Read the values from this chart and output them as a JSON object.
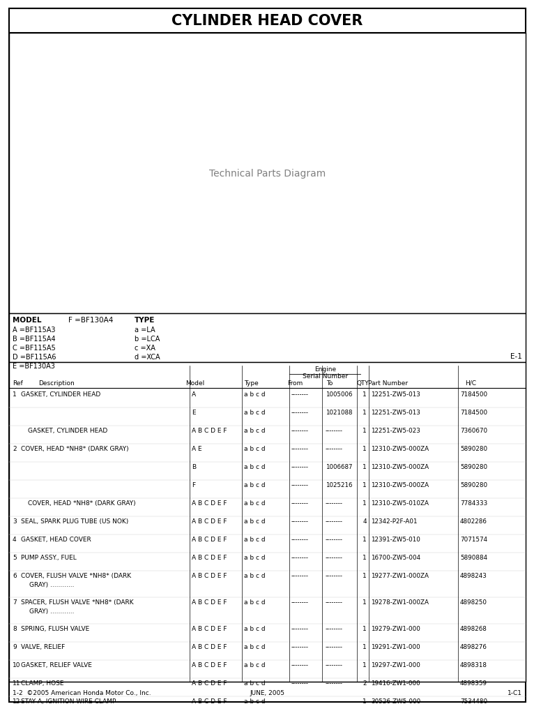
{
  "title": "CYLINDER HEAD COVER",
  "page_bg": "#ffffff",
  "model_info": {
    "model_label": "MODEL",
    "model_value": "F =BF130A4",
    "type_label": "TYPE",
    "entries_left": [
      "A =BF115A3",
      "B =BF115A4",
      "C =BF115A5",
      "D =BF115A6",
      "E =BF130A3"
    ],
    "entries_right": [
      "a =LA",
      "b =LCA",
      "c =XA",
      "d =XCA"
    ],
    "page_code": "E-1"
  },
  "table_rows": [
    {
      "ref": "1",
      "desc": "GASKET, CYLINDER HEAD ",
      "dots1": true,
      "model": "A",
      "type": "a b c d",
      "from": "--------",
      "to": "1005006",
      "qty": "1",
      "part": "12251-ZW5-013",
      "hc": "7184500"
    },
    {
      "ref": "",
      "desc": "",
      "dots1": false,
      "model": "E",
      "type": "a b c d",
      "from": "--------",
      "to": "1021088",
      "qty": "1",
      "part": "12251-ZW5-013",
      "hc": "7184500"
    },
    {
      "ref": "",
      "desc": "GASKET, CYLINDER HEAD ",
      "dots1": true,
      "model": "A B C D E F",
      "type": "a b c d",
      "from": "--------",
      "to": "--------",
      "qty": "1",
      "part": "12251-ZW5-023",
      "hc": "7360670",
      "indent": true
    },
    {
      "ref": "2",
      "desc": "COVER, HEAD *NH8* (DARK GRAY) ",
      "dots1": true,
      "model": "A E",
      "type": "a b c d",
      "from": "--------",
      "to": "--------",
      "qty": "1",
      "part": "12310-ZW5-000ZA",
      "hc": "5890280"
    },
    {
      "ref": "",
      "desc": "",
      "dots1": false,
      "model": "B",
      "type": "a b c d",
      "from": "--------",
      "to": "1006687",
      "qty": "1",
      "part": "12310-ZW5-000ZA",
      "hc": "5890280"
    },
    {
      "ref": "",
      "desc": "",
      "dots1": false,
      "model": "F",
      "type": "a b c d",
      "from": "--------",
      "to": "1025216",
      "qty": "1",
      "part": "12310-ZW5-000ZA",
      "hc": "5890280"
    },
    {
      "ref": "",
      "desc": "COVER, HEAD *NH8* (DARK GRAY) ",
      "dots1": true,
      "model": "A B C D E F",
      "type": "a b c d",
      "from": "--------",
      "to": "--------",
      "qty": "1",
      "part": "12310-ZW5-010ZA",
      "hc": "7784333",
      "indent": true
    },
    {
      "ref": "3",
      "desc": "SEAL, SPARK PLUG TUBE (US NOK) ",
      "dots1": true,
      "model": "A B C D E F",
      "type": "a b c d",
      "from": "--------",
      "to": "--------",
      "qty": "4",
      "part": "12342-P2F-A01",
      "hc": "4802286"
    },
    {
      "ref": "4",
      "desc": "GASKET, HEAD COVER ",
      "dots1": true,
      "model": "A B C D E F",
      "type": "a b c d",
      "from": "--------",
      "to": "--------",
      "qty": "1",
      "part": "12391-ZW5-010",
      "hc": "7071574"
    },
    {
      "ref": "5",
      "desc": "PUMP ASSY., FUEL",
      "dots1": true,
      "model": "A B C D E F",
      "type": "a b c d",
      "from": "--------",
      "to": "--------",
      "qty": "1",
      "part": "16700-ZW5-004",
      "hc": "5890884"
    },
    {
      "ref": "6",
      "desc": "COVER, FLUSH VALVE *NH8* (DARK",
      "dots1": false,
      "model": "A B C D E F",
      "type": "a b c d",
      "from": "--------",
      "to": "--------",
      "qty": "1",
      "part": "19277-ZW1-000ZA",
      "hc": "4898243",
      "line2": "   GRAY) "
    },
    {
      "ref": "7",
      "desc": "SPACER, FLUSH VALVE *NH8* (DARK",
      "dots1": false,
      "model": "A B C D E F",
      "type": "a b c d",
      "from": "--------",
      "to": "--------",
      "qty": "1",
      "part": "19278-ZW1-000ZA",
      "hc": "4898250",
      "line2": "   GRAY) "
    },
    {
      "ref": "8",
      "desc": "SPRING, FLUSH VALVE ",
      "dots1": true,
      "model": "A B C D E F",
      "type": "a b c d",
      "from": "--------",
      "to": "--------",
      "qty": "1",
      "part": "19279-ZW1-000",
      "hc": "4898268"
    },
    {
      "ref": "9",
      "desc": "VALVE, RELIEF ",
      "dots1": true,
      "model": "A B C D E F",
      "type": "a b c d",
      "from": "--------",
      "to": "--------",
      "qty": "1",
      "part": "19291-ZW1-000",
      "hc": "4898276"
    },
    {
      "ref": "10",
      "desc": "GASKET, RELIEF VALVE ",
      "dots1": true,
      "model": "A B C D E F",
      "type": "a b c d",
      "from": "--------",
      "to": "--------",
      "qty": "1",
      "part": "19297-ZW1-000",
      "hc": "4898318"
    },
    {
      "ref": "11",
      "desc": "CLAMP, HOSE ",
      "dots1": true,
      "model": "A B C D E F",
      "type": "a b c d",
      "from": "--------",
      "to": "--------",
      "qty": "2",
      "part": "19416-ZW1-000",
      "hc": "4898359"
    },
    {
      "ref": "12",
      "desc": "STAY A, IGNITION WIRE CLAMP",
      "dots1": true,
      "model": "A B C D E F",
      "type": "a b c d",
      "from": "--------",
      "to": "--------",
      "qty": "1",
      "part": "30526-ZW5-000",
      "hc": "7534480"
    }
  ],
  "footer_left": "1-2  ©2005 American Honda Motor Co., Inc.",
  "footer_center": "JUNE, 2005",
  "footer_right": "1-C1"
}
